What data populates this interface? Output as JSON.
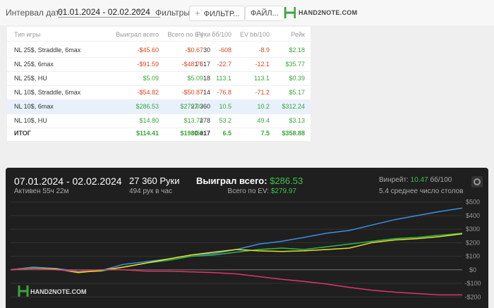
{
  "toolbar": {
    "date_label": "Интервал дат:",
    "date_range": "01.01.2024 - 02.02.2024",
    "filters_label": "Фильтры:",
    "filter_button": "ФИЛЬТР...",
    "file_button": "ФАЙЛ...",
    "logo": "HAND2NOTE.COM"
  },
  "table": {
    "columns": [
      "Тип игры",
      "Руки",
      "Выиграл всего",
      "Всего по EV",
      "бб/100",
      "EV bb/100",
      "Рейк"
    ],
    "rows": [
      [
        "NL 25$, Straddle, 6max",
        "30",
        "-$45.60",
        "-$0.67",
        "-608",
        "-8.9",
        "$2.18"
      ],
      [
        "NL 25$, 6max",
        "1 617",
        "-$91.59",
        "-$48.75",
        "-22.7",
        "-12.1",
        "$35.77"
      ],
      [
        "NL 25$, HU",
        "18",
        "$5.09",
        "$5.09",
        "113.1",
        "113.1",
        "$0.39"
      ],
      [
        "NL 10$, Straddle, 6max",
        "714",
        "-$54.82",
        "-$50.87",
        "-76.8",
        "-71.2",
        "$5.17"
      ],
      [
        "NL 10$, 6max",
        "27 360",
        "$286.53",
        "$279.97",
        "10.5",
        "10.2",
        "$312.24"
      ],
      [
        "NL 10$, HU",
        "278",
        "$14.80",
        "$13.74",
        "53.2",
        "49.4",
        "$3.13"
      ]
    ],
    "total": [
      "ИТОГ",
      "30 017",
      "$114.41",
      "$198.51",
      "6.5",
      "7.5",
      "$358.88"
    ]
  },
  "stats": {
    "period": "07.01.2024 - 02.02.2024",
    "active": "Активен 55ч 22м",
    "hands": "27 360 Руки",
    "hands_per_hour": "494 рук в час",
    "won_label": "Выиграл всего:",
    "won_value": "$286.53",
    "ev_label": "Всего по EV:",
    "ev_value": "$279.97",
    "winrate_label": "Винрейт:",
    "winrate_value": "10.47",
    "winrate_unit": "бб/100",
    "avg_tables": "5.4 среднее число столов",
    "logo": "HAND2NOTE.COM"
  },
  "chart_data": {
    "type": "line",
    "ylim": [
      -235,
      545
    ],
    "yticks": [
      {
        "value": 500,
        "label": "$500"
      },
      {
        "value": 400,
        "label": "$400"
      },
      {
        "value": 300,
        "label": "$300"
      },
      {
        "value": 200,
        "label": "$200"
      },
      {
        "value": 100,
        "label": "$100"
      },
      {
        "value": 0,
        "label": "$0"
      },
      {
        "value": -100,
        "label": "-$100"
      },
      {
        "value": -200,
        "label": "-$200"
      }
    ],
    "grid": true,
    "series": [
      {
        "color": "#3d8fe0",
        "values": [
          0,
          20,
          10,
          -10,
          -5,
          40,
          60,
          80,
          110,
          120,
          150,
          190,
          210,
          240,
          270,
          290,
          330,
          370,
          400,
          430,
          455
        ]
      },
      {
        "color": "#2fb84e",
        "values": [
          0,
          15,
          5,
          -15,
          -10,
          20,
          50,
          70,
          100,
          110,
          130,
          150,
          160,
          150,
          170,
          190,
          210,
          230,
          240,
          255,
          270
        ]
      },
      {
        "color": "#e8e020",
        "values": [
          0,
          10,
          5,
          -20,
          -5,
          20,
          50,
          80,
          110,
          130,
          150,
          140,
          135,
          140,
          150,
          160,
          200,
          220,
          230,
          245,
          265
        ]
      },
      {
        "color": "#e0356a",
        "values": [
          0,
          10,
          0,
          -10,
          0,
          0,
          -10,
          -10,
          -15,
          -20,
          -30,
          -50,
          -70,
          -85,
          -105,
          -130,
          -150,
          -165,
          -175,
          -185,
          -185
        ]
      }
    ]
  }
}
